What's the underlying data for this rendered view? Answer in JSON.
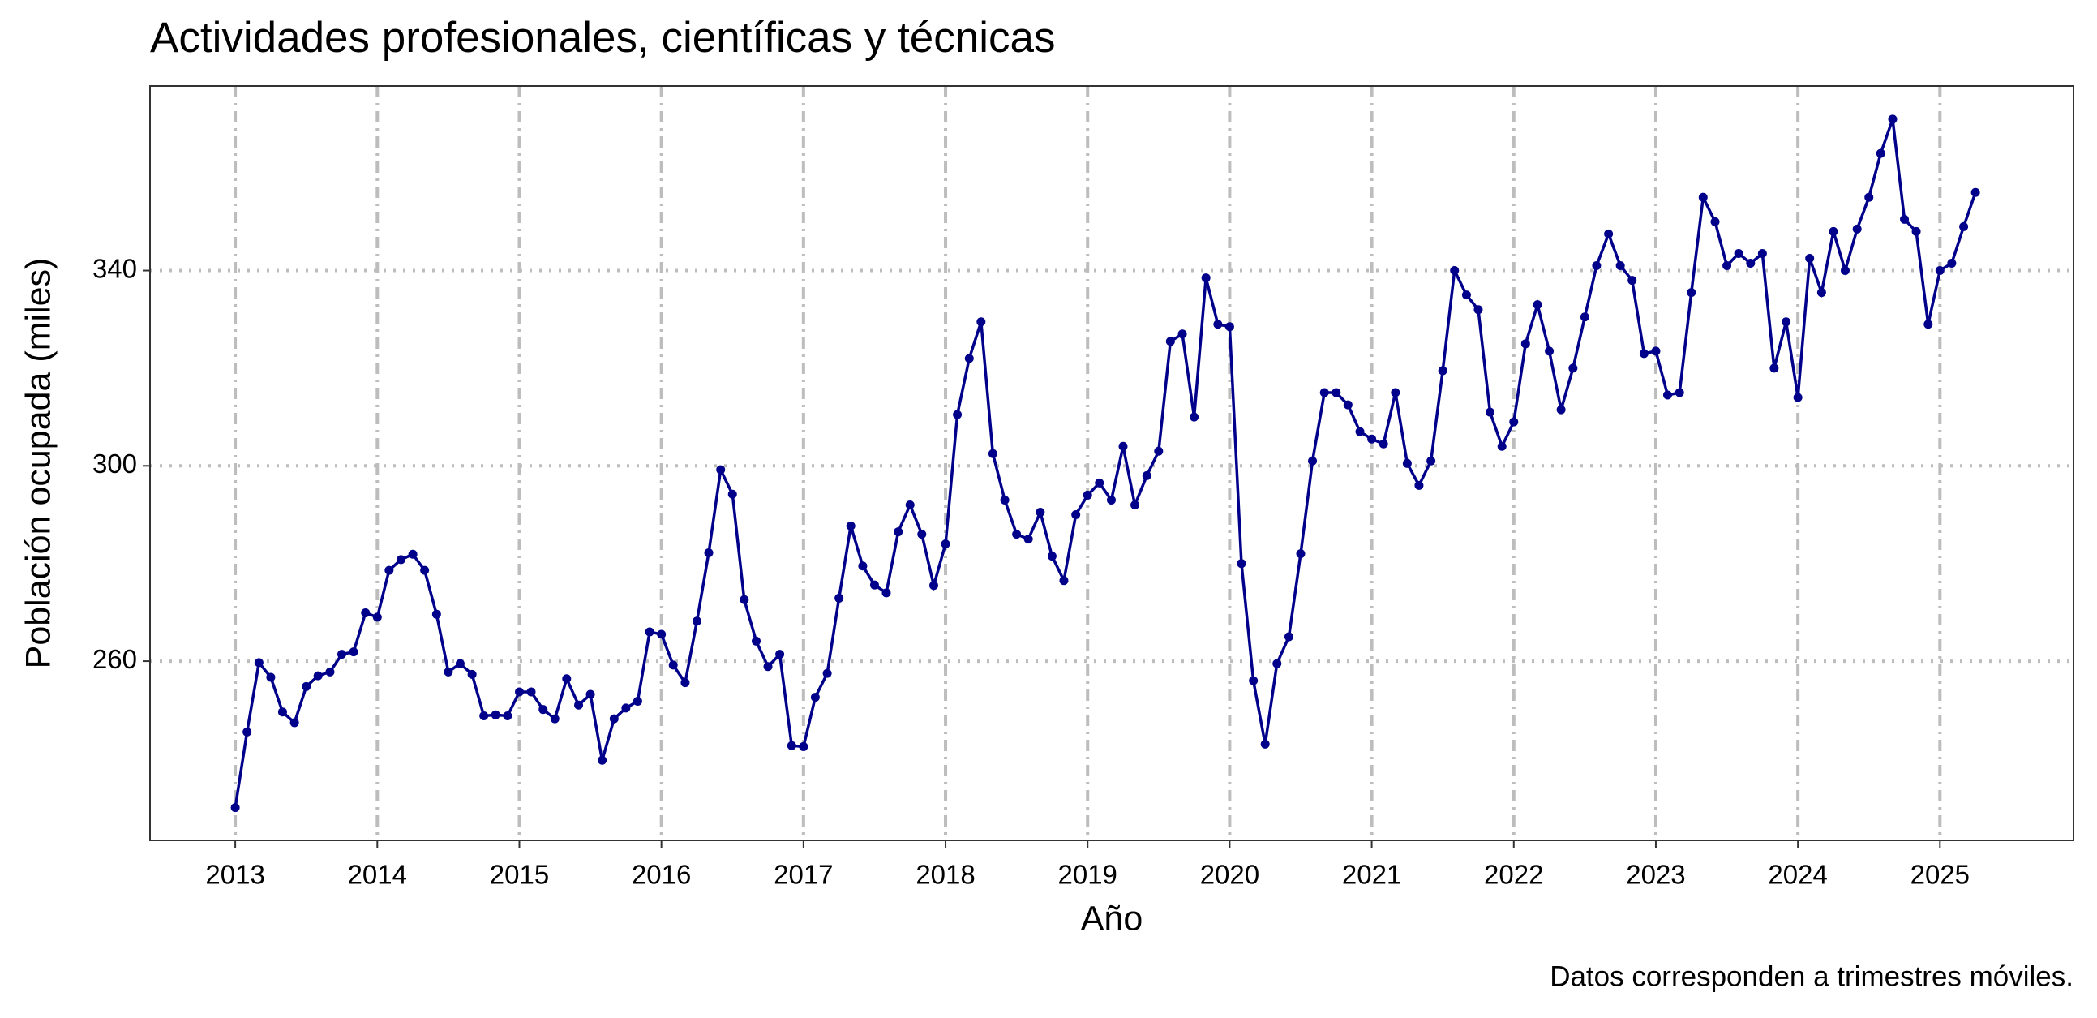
{
  "chart_data": {
    "type": "line",
    "title": "Actividades profesionales, científicas y técnicas",
    "x_label": "Año",
    "y_label": "Población ocupada (miles)",
    "caption": "Datos corresponden a trimestres móviles.",
    "x": [
      2013,
      2013.083,
      2013.167,
      2013.25,
      2013.333,
      2013.417,
      2013.5,
      2013.583,
      2013.667,
      2013.75,
      2013.833,
      2013.917,
      2014,
      2014.083,
      2014.167,
      2014.25,
      2014.333,
      2014.417,
      2014.5,
      2014.583,
      2014.667,
      2014.75,
      2014.833,
      2014.917,
      2015,
      2015.083,
      2015.167,
      2015.25,
      2015.333,
      2015.417,
      2015.5,
      2015.583,
      2015.667,
      2015.75,
      2015.833,
      2015.917,
      2016,
      2016.083,
      2016.167,
      2016.25,
      2016.333,
      2016.417,
      2016.5,
      2016.583,
      2016.667,
      2016.75,
      2016.833,
      2016.917,
      2017,
      2017.083,
      2017.167,
      2017.25,
      2017.333,
      2017.417,
      2017.5,
      2017.583,
      2017.667,
      2017.75,
      2017.833,
      2017.917,
      2018,
      2018.083,
      2018.167,
      2018.25,
      2018.333,
      2018.417,
      2018.5,
      2018.583,
      2018.667,
      2018.75,
      2018.833,
      2018.917,
      2019,
      2019.083,
      2019.167,
      2019.25,
      2019.333,
      2019.417,
      2019.5,
      2019.583,
      2019.667,
      2019.75,
      2019.833,
      2019.917,
      2020,
      2020.083,
      2020.167,
      2020.25,
      2020.333,
      2020.417,
      2020.5,
      2020.583,
      2020.667,
      2020.75,
      2020.833,
      2020.917,
      2021,
      2021.083,
      2021.167,
      2021.25,
      2021.333,
      2021.417,
      2021.5,
      2021.583,
      2021.667,
      2021.75,
      2021.833,
      2021.917,
      2022,
      2022.083,
      2022.167,
      2022.25,
      2022.333,
      2022.417,
      2022.5,
      2022.583,
      2022.667,
      2022.75,
      2022.833,
      2022.917,
      2023,
      2023.083,
      2023.167,
      2023.25,
      2023.333,
      2023.417,
      2023.5,
      2023.583,
      2023.667,
      2023.75,
      2023.833,
      2023.917,
      2024,
      2024.083,
      2024.167,
      2024.25,
      2024.333,
      2024.417,
      2024.5,
      2024.583,
      2024.667,
      2024.75,
      2024.833,
      2024.917,
      2025,
      2025.083,
      2025.167,
      2025.25
    ],
    "series": [
      {
        "color": "#00008b",
        "values": [
          230,
          245.5,
          259.7,
          256.7,
          249.6,
          247.4,
          254.8,
          257,
          257.8,
          261.4,
          261.9,
          269.9,
          269,
          278.6,
          280.8,
          281.9,
          278.6,
          269.6,
          257.8,
          259.5,
          257.3,
          248.8,
          249,
          248.8,
          253.7,
          253.7,
          250.1,
          248.2,
          256.4,
          251,
          253.2,
          239.7,
          248.2,
          250.4,
          251.8,
          266,
          265.5,
          259.2,
          255.6,
          268.2,
          282.2,
          299.2,
          294.2,
          272.6,
          264.1,
          258.9,
          261.4,
          242.7,
          242.5,
          252.6,
          257.5,
          272.9,
          287.7,
          279.5,
          275.6,
          274,
          286.5,
          292,
          286,
          275.5,
          284,
          310.5,
          322,
          329.5,
          302.5,
          293,
          286,
          285,
          290.5,
          281.5,
          276.5,
          290,
          294,
          296.5,
          293,
          304,
          292,
          298,
          303,
          325.5,
          327,
          310,
          338.5,
          329,
          328.5,
          280,
          256,
          243,
          259.5,
          265,
          282,
          301,
          315,
          315,
          312.5,
          307,
          305.5,
          304.5,
          315,
          300.5,
          296,
          301,
          319.5,
          340,
          335,
          332,
          311,
          304,
          309,
          325,
          333,
          323.5,
          311.5,
          320,
          330.5,
          341,
          347.5,
          341,
          338,
          323,
          323.5,
          314.5,
          315,
          335.5,
          355,
          350,
          341,
          343.5,
          341.5,
          343.5,
          320,
          329.5,
          314,
          342.5,
          335.5,
          348,
          340,
          348.5,
          355,
          364,
          371,
          350.5,
          348,
          329,
          340,
          341.5,
          349,
          356
        ]
      }
    ],
    "xlim": [
      2012.4,
      2025.94
    ],
    "ylim": [
      223.3,
      377.8
    ],
    "xticks": [
      2013,
      2014,
      2015,
      2016,
      2017,
      2018,
      2019,
      2020,
      2021,
      2022,
      2023,
      2024,
      2025
    ],
    "yticks": [
      260,
      300,
      340
    ],
    "grid": true
  }
}
